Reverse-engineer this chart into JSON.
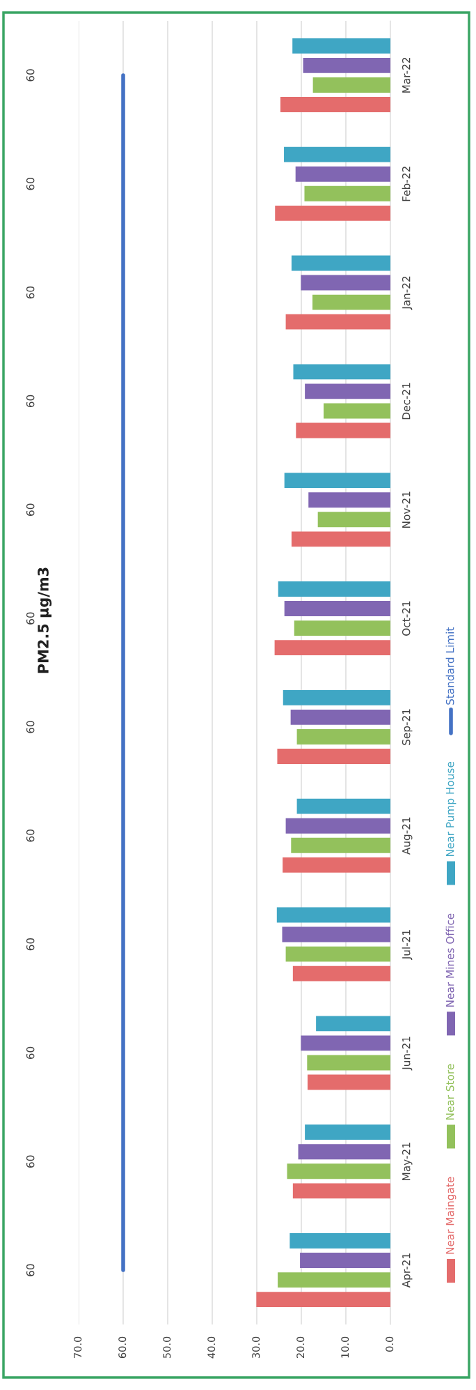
{
  "chart_data": {
    "type": "bar",
    "orientation": "horizontal",
    "title": "PM2.5 µg/m3",
    "categories": [
      "Mar-22",
      "Feb-22",
      "Jan-22",
      "Dec-21",
      "Nov-21",
      "Oct-21",
      "Sep-21",
      "Aug-21",
      "Jul-21",
      "Jun-21",
      "May-21",
      "Apr-21"
    ],
    "series": [
      {
        "name": "Near Maingate",
        "color": "#e46c6c",
        "values": [
          24.7,
          25.9,
          23.5,
          21.2,
          22.2,
          26.0,
          25.4,
          24.2,
          21.9,
          18.6,
          21.9,
          30.1
        ]
      },
      {
        "name": "Near Store",
        "color": "#93c15c",
        "values": [
          17.4,
          19.3,
          17.5,
          15.0,
          16.3,
          21.6,
          21.0,
          22.3,
          23.5,
          18.7,
          23.2,
          25.3
        ]
      },
      {
        "name": "Near Mines Office",
        "color": "#8066b2",
        "values": [
          19.6,
          21.3,
          20.1,
          19.2,
          18.4,
          23.8,
          22.4,
          23.5,
          24.3,
          20.1,
          20.7,
          20.3
        ]
      },
      {
        "name": "Near Pump House",
        "color": "#3fa6c4",
        "values": [
          22.0,
          23.9,
          22.2,
          21.8,
          23.8,
          25.2,
          24.1,
          21.0,
          25.5,
          16.7,
          19.2,
          22.6
        ]
      },
      {
        "name": "Standard Limit",
        "color": "#4472c4",
        "type": "line",
        "values": [
          60,
          60,
          60,
          60,
          60,
          60,
          60,
          60,
          60,
          60,
          60,
          60
        ],
        "value_labels": [
          "60",
          "60",
          "60",
          "60",
          "60",
          "60",
          "60",
          "60",
          "60",
          "60",
          "60",
          "60"
        ]
      }
    ],
    "xlim": [
      70,
      0
    ],
    "xticks": [
      {
        "value": 70,
        "label": "70.0"
      },
      {
        "value": 60,
        "label": "60.0"
      },
      {
        "value": 50,
        "label": "50.0"
      },
      {
        "value": 40,
        "label": "40.0"
      },
      {
        "value": 30,
        "label": "30.0"
      },
      {
        "value": 20,
        "label": "20.0"
      },
      {
        "value": 10,
        "label": "10.0"
      },
      {
        "value": 0,
        "label": "0.0"
      }
    ],
    "grid": "x",
    "legend": "right"
  }
}
